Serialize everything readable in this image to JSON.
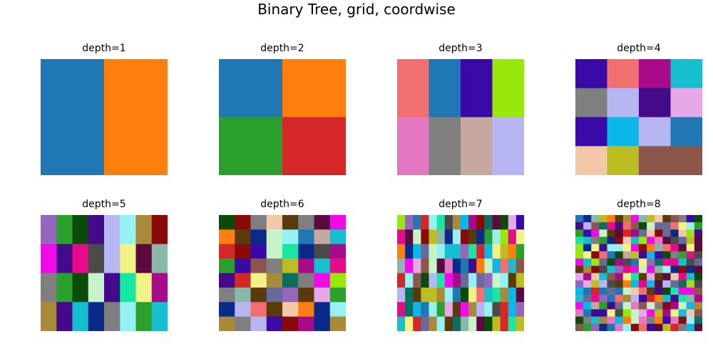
{
  "title": "Binary Tree, grid, coordwise",
  "palette": [
    "#1f77b4",
    "#ff7f0e",
    "#2ca02c",
    "#d62728",
    "#9467bd",
    "#8c564b",
    "#e377c2",
    "#7f7f7f",
    "#bcbd22",
    "#17becf",
    "#0b6e5f",
    "#5b0a40",
    "#c6a89f",
    "#b6b6f2",
    "#15e8a3",
    "#0a4a0a",
    "#440a8a",
    "#f2f286",
    "#96f2f2",
    "#f26f6f",
    "#5a3a0a",
    "#8a0a0a",
    "#a80a8a",
    "#0a2a8a",
    "#e8a8e8",
    "#98e80a",
    "#6a6a9a",
    "#a88a3a",
    "#0ab8e8",
    "#e80a8a",
    "#3a0aa8",
    "#f2c8a8",
    "#8ab8a8",
    "#c8f2c8",
    "#4a4a4a",
    "#f20ae8"
  ],
  "chart_data": [
    {
      "type": "heatmap",
      "title": "depth=1",
      "depth": 1,
      "cols": 2,
      "rows": 1
    },
    {
      "type": "heatmap",
      "title": "depth=2",
      "depth": 2,
      "cols": 2,
      "rows": 2
    },
    {
      "type": "heatmap",
      "title": "depth=3",
      "depth": 3,
      "cols": 4,
      "rows": 2
    },
    {
      "type": "heatmap",
      "title": "depth=4",
      "depth": 4,
      "cols": 4,
      "rows": 4
    },
    {
      "type": "heatmap",
      "title": "depth=5",
      "depth": 5,
      "cols": 8,
      "rows": 4
    },
    {
      "type": "heatmap",
      "title": "depth=6",
      "depth": 6,
      "cols": 8,
      "rows": 8
    },
    {
      "type": "heatmap",
      "title": "depth=7",
      "depth": 7,
      "cols": 16,
      "rows": 8
    },
    {
      "type": "heatmap",
      "title": "depth=8",
      "depth": 8,
      "cols": 16,
      "rows": 16
    }
  ]
}
